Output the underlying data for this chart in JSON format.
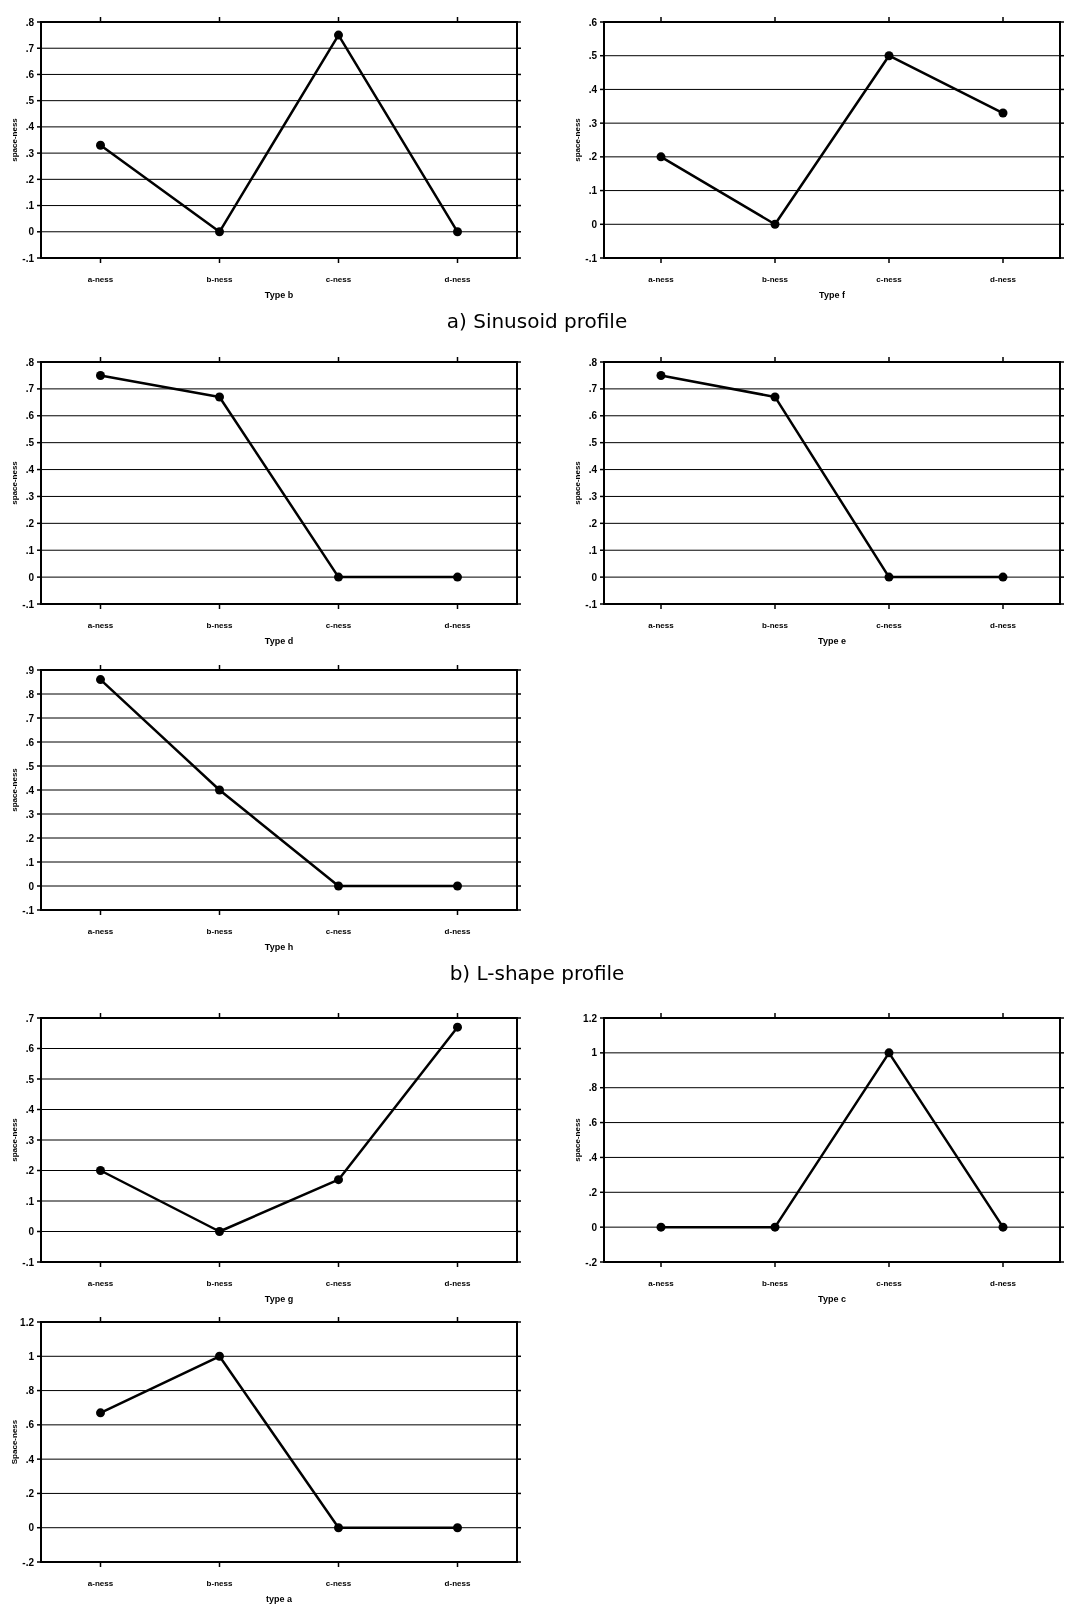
{
  "chart_data": [
    {
      "type": "line",
      "xlabel": "Type b",
      "ylabel": "space-ness",
      "categories": [
        "a-ness",
        "b-ness",
        "c-ness",
        "d-ness"
      ],
      "series": [
        {
          "color": "#000000",
          "values": [
            0.33,
            0,
            0.75,
            0
          ]
        }
      ],
      "ylim": [
        -0.1,
        0.8
      ],
      "yticks": [
        {
          "value": -0.1,
          "label": "-.1"
        },
        0,
        {
          "value": 0.1,
          "label": ".1"
        },
        {
          "value": 0.2,
          "label": ".2"
        },
        {
          "value": 0.3,
          "label": ".3"
        },
        {
          "value": 0.4,
          "label": ".4"
        },
        {
          "value": 0.5,
          "label": ".5"
        },
        {
          "value": 0.6,
          "label": ".6"
        },
        {
          "value": 0.7,
          "label": ".7"
        },
        {
          "value": 0.8,
          "label": ".8"
        }
      ],
      "grid": "y",
      "marker": "circle",
      "line_style": "solid",
      "annotations": [
        "a) Sinusoid profile"
      ]
    },
    {
      "type": "line",
      "xlabel": "Type f",
      "ylabel": "space-ness",
      "categories": [
        "a-ness",
        "b-ness",
        "c-ness",
        "d-ness"
      ],
      "series": [
        {
          "color": "#000000",
          "values": [
            0.2,
            0,
            0.5,
            0.33
          ]
        }
      ],
      "ylim": [
        -0.1,
        0.6
      ],
      "yticks": [
        {
          "value": -0.1,
          "label": "-.1"
        },
        0,
        {
          "value": 0.1,
          "label": ".1"
        },
        {
          "value": 0.2,
          "label": ".2"
        },
        {
          "value": 0.3,
          "label": ".3"
        },
        {
          "value": 0.4,
          "label": ".4"
        },
        {
          "value": 0.5,
          "label": ".5"
        },
        {
          "value": 0.6,
          "label": ".6"
        }
      ],
      "grid": "y",
      "marker": "circle",
      "line_style": "solid"
    },
    {
      "type": "line",
      "xlabel": "Type d",
      "ylabel": "space-ness",
      "categories": [
        "a-ness",
        "b-ness",
        "c-ness",
        "d-ness"
      ],
      "series": [
        {
          "color": "#000000",
          "values": [
            0.75,
            0.67,
            0,
            0
          ]
        }
      ],
      "ylim": [
        -0.1,
        0.8
      ],
      "yticks": [
        {
          "value": -0.1,
          "label": "-.1"
        },
        0,
        {
          "value": 0.1,
          "label": ".1"
        },
        {
          "value": 0.2,
          "label": ".2"
        },
        {
          "value": 0.3,
          "label": ".3"
        },
        {
          "value": 0.4,
          "label": ".4"
        },
        {
          "value": 0.5,
          "label": ".5"
        },
        {
          "value": 0.6,
          "label": ".6"
        },
        {
          "value": 0.7,
          "label": ".7"
        },
        {
          "value": 0.8,
          "label": ".8"
        }
      ],
      "grid": "y",
      "marker": "circle",
      "line_style": "solid"
    },
    {
      "type": "line",
      "xlabel": "Type e",
      "ylabel": "space-ness",
      "categories": [
        "a-ness",
        "b-ness",
        "c-ness",
        "d-ness"
      ],
      "series": [
        {
          "color": "#000000",
          "values": [
            0.75,
            0.67,
            0,
            0
          ]
        }
      ],
      "ylim": [
        -0.1,
        0.8
      ],
      "yticks": [
        {
          "value": -0.1,
          "label": "-.1"
        },
        0,
        {
          "value": 0.1,
          "label": ".1"
        },
        {
          "value": 0.2,
          "label": ".2"
        },
        {
          "value": 0.3,
          "label": ".3"
        },
        {
          "value": 0.4,
          "label": ".4"
        },
        {
          "value": 0.5,
          "label": ".5"
        },
        {
          "value": 0.6,
          "label": ".6"
        },
        {
          "value": 0.7,
          "label": ".7"
        },
        {
          "value": 0.8,
          "label": ".8"
        }
      ],
      "grid": "y",
      "marker": "circle",
      "line_style": "solid"
    },
    {
      "type": "line",
      "xlabel": "Type h",
      "ylabel": "space-ness",
      "categories": [
        "a-ness",
        "b-ness",
        "c-ness",
        "d-ness"
      ],
      "series": [
        {
          "color": "#000000",
          "values": [
            0.86,
            0.4,
            0,
            0
          ]
        }
      ],
      "ylim": [
        -0.1,
        0.9
      ],
      "yticks": [
        {
          "value": -0.1,
          "label": "-.1"
        },
        0,
        {
          "value": 0.1,
          "label": ".1"
        },
        {
          "value": 0.2,
          "label": ".2"
        },
        {
          "value": 0.3,
          "label": ".3"
        },
        {
          "value": 0.4,
          "label": ".4"
        },
        {
          "value": 0.5,
          "label": ".5"
        },
        {
          "value": 0.6,
          "label": ".6"
        },
        {
          "value": 0.7,
          "label": ".7"
        },
        {
          "value": 0.8,
          "label": ".8"
        },
        {
          "value": 0.9,
          "label": ".9"
        }
      ],
      "grid": "y",
      "marker": "circle",
      "line_style": "solid",
      "annotations": [
        "b) L-shape profile"
      ]
    },
    {
      "type": "line",
      "xlabel": "Type g",
      "ylabel": "space-ness",
      "categories": [
        "a-ness",
        "b-ness",
        "c-ness",
        "d-ness"
      ],
      "series": [
        {
          "color": "#000000",
          "values": [
            0.2,
            0,
            0.17,
            0.67
          ]
        }
      ],
      "ylim": [
        -0.1,
        0.7
      ],
      "yticks": [
        {
          "value": -0.1,
          "label": "-.1"
        },
        0,
        {
          "value": 0.1,
          "label": ".1"
        },
        {
          "value": 0.2,
          "label": ".2"
        },
        {
          "value": 0.3,
          "label": ".3"
        },
        {
          "value": 0.4,
          "label": ".4"
        },
        {
          "value": 0.5,
          "label": ".5"
        },
        {
          "value": 0.6,
          "label": ".6"
        },
        {
          "value": 0.7,
          "label": ".7"
        }
      ],
      "grid": "y",
      "marker": "circle",
      "line_style": "solid"
    },
    {
      "type": "line",
      "xlabel": "Type c",
      "ylabel": "space-ness",
      "categories": [
        "a-ness",
        "b-ness",
        "c-ness",
        "d-ness"
      ],
      "series": [
        {
          "color": "#000000",
          "values": [
            0,
            0,
            1,
            0
          ]
        }
      ],
      "ylim": [
        -0.2,
        1.2
      ],
      "yticks": [
        {
          "value": -0.2,
          "label": "-.2"
        },
        0,
        {
          "value": 0.2,
          "label": ".2"
        },
        {
          "value": 0.4,
          "label": ".4"
        },
        {
          "value": 0.6,
          "label": ".6"
        },
        {
          "value": 0.8,
          "label": ".8"
        },
        1,
        1.2
      ],
      "grid": "y",
      "marker": "circle",
      "line_style": "solid"
    },
    {
      "type": "line",
      "xlabel": "type a",
      "ylabel": "Space-ness",
      "categories": [
        "a-ness",
        "b-ness",
        "c-ness",
        "d-ness"
      ],
      "series": [
        {
          "color": "#000000",
          "values": [
            0.67,
            1,
            0,
            0
          ]
        }
      ],
      "ylim": [
        -0.2,
        1.2
      ],
      "yticks": [
        {
          "value": -0.2,
          "label": "-.2"
        },
        0,
        {
          "value": 0.2,
          "label": ".2"
        },
        {
          "value": 0.4,
          "label": ".4"
        },
        {
          "value": 0.6,
          "label": ".6"
        },
        {
          "value": 0.8,
          "label": ".8"
        },
        1,
        1.2
      ],
      "grid": "y",
      "marker": "circle",
      "line_style": "solid"
    }
  ]
}
